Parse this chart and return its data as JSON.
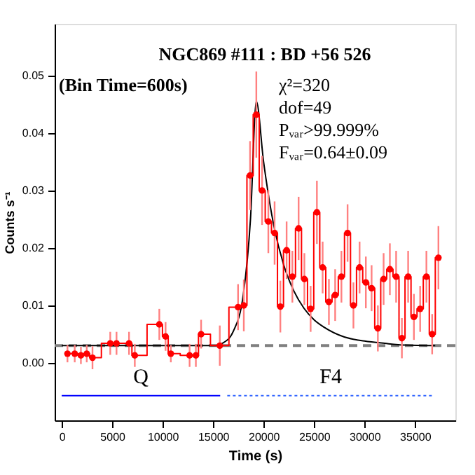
{
  "chart_data": {
    "type": "step",
    "title": "NGC869 #111 : BD +56 526",
    "annotations": [
      "(Bin Time=600s)",
      "χ²=320",
      "dof=49",
      "Pᵥₐᵣ>99.999%",
      "Fᵥₐᵣ=0.64±0.09"
    ],
    "xlabel": "Time (s)",
    "ylabel": "Counts s⁻¹",
    "xlim": [
      -700,
      39000
    ],
    "xticks": [
      0,
      5000,
      10000,
      15000,
      20000,
      25000,
      30000,
      35000
    ],
    "ylim": [
      -0.01,
      0.059
    ],
    "yticks": [
      {
        "value": 0,
        "label": "0.00"
      },
      {
        "value": 0.01,
        "label": "0.01"
      },
      {
        "value": 0.02,
        "label": "0.02"
      },
      {
        "value": 0.03,
        "label": "0.03"
      },
      {
        "value": 0.04,
        "label": "0.04"
      },
      {
        "value": 0.05,
        "label": "0.05"
      }
    ],
    "grid": false,
    "marker": "circle",
    "series": [
      {
        "color": "#ff0000",
        "x": [
          570,
          1290,
          1900,
          2480,
          3050,
          4810,
          5430,
          6670,
          7240,
          9670,
          10290,
          10810,
          12670,
          13290,
          13810,
          15660,
          17470,
          18040,
          18660,
          19280,
          19850,
          20470,
          21090,
          21660,
          22280,
          22850,
          23470,
          24040,
          24660,
          25280,
          25850,
          26470,
          27090,
          27710,
          28320,
          28900,
          29510,
          30130,
          30700,
          31320,
          31890,
          32510,
          33130,
          33700,
          34320,
          34890,
          35510,
          36130,
          36700,
          37320
        ],
        "values": [
          0.0016,
          0.0016,
          0.0013,
          0.0016,
          0.0009,
          0.0034,
          0.0034,
          0.0034,
          0.0013,
          0.0067,
          0.0046,
          0.0016,
          0.0013,
          0.0013,
          0.005,
          0.003,
          0.0097,
          0.01,
          0.0326,
          0.0432,
          0.03,
          0.0246,
          0.0226,
          0.0098,
          0.0196,
          0.015,
          0.0234,
          0.0146,
          0.0094,
          0.0262,
          0.0166,
          0.0106,
          0.0118,
          0.015,
          0.0226,
          0.01,
          0.0166,
          0.014,
          0.013,
          0.006,
          0.0146,
          0.0163,
          0.015,
          0.0043,
          0.015,
          0.008,
          0.0094,
          0.015,
          0.005,
          0.0183
        ],
        "errors": [
          0.0015,
          0.0015,
          0.0015,
          0.0015,
          0.002,
          0.002,
          0.002,
          0.002,
          0.002,
          0.0027,
          0.0025,
          0.0015,
          0.002,
          0.002,
          0.0025,
          0.0035,
          0.004,
          0.0045,
          0.006,
          0.0075,
          0.006,
          0.0055,
          0.0055,
          0.0045,
          0.005,
          0.0045,
          0.0055,
          0.0045,
          0.004,
          0.0055,
          0.0045,
          0.004,
          0.0045,
          0.0045,
          0.005,
          0.004,
          0.0045,
          0.0045,
          0.004,
          0.004,
          0.0045,
          0.0045,
          0.0045,
          0.0035,
          0.0045,
          0.004,
          0.004,
          0.0045,
          0.0035,
          0.0055
        ]
      },
      {
        "type": "line",
        "color": "#000000",
        "marker": "none",
        "x": [
          0,
          15000,
          16000,
          17000,
          18000,
          18700,
          19280,
          20000,
          21000,
          22000,
          23000,
          24000,
          25000,
          26000,
          28000,
          30000,
          32000,
          34000,
          37000
        ],
        "values": [
          0.003,
          0.003,
          0.0035,
          0.0055,
          0.012,
          0.025,
          0.0455,
          0.035,
          0.024,
          0.017,
          0.0125,
          0.0095,
          0.0075,
          0.0062,
          0.0045,
          0.0038,
          0.0034,
          0.0031,
          0.003
        ]
      },
      {
        "type": "line",
        "name": "Q",
        "color": "#0000ff",
        "marker": "none",
        "line_style": "solid",
        "x": [
          0,
          15700
        ],
        "values": [
          -0.0057,
          -0.0057
        ]
      },
      {
        "type": "line",
        "name": "F4",
        "color": "#3366ff",
        "marker": "none",
        "line_style": "dotted",
        "x": [
          16400,
          36900
        ],
        "values": [
          -0.0057,
          -0.0057
        ]
      }
    ],
    "ref_lines": [
      {
        "axis": "y",
        "value": 0.003,
        "color": "#808080",
        "line_style": "dashed"
      }
    ]
  }
}
